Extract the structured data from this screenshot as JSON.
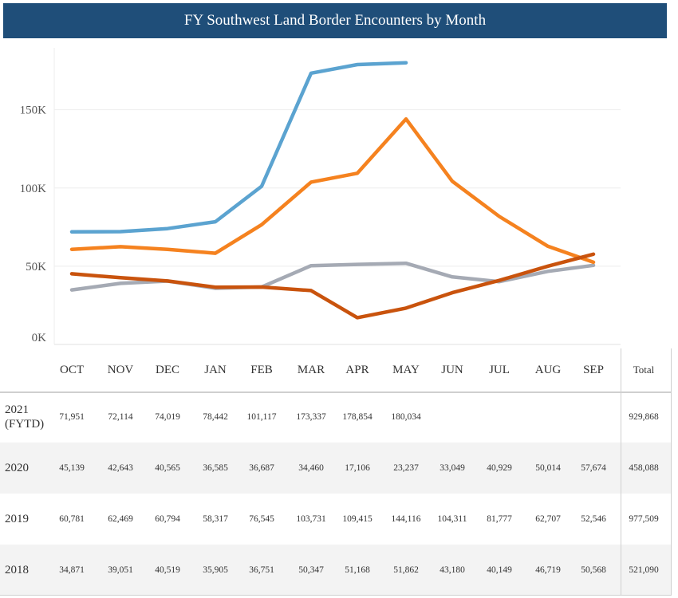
{
  "title": "FY Southwest Land Border Encounters by Month",
  "chart_data": {
    "type": "line",
    "title": "FY Southwest Land Border Encounters by Month",
    "categories": [
      "OCT",
      "NOV",
      "DEC",
      "JAN",
      "FEB",
      "MAR",
      "APR",
      "MAY",
      "JUN",
      "JUL",
      "AUG",
      "SEP"
    ],
    "y_ticks": [
      "0K",
      "50K",
      "100K",
      "150K"
    ],
    "ylim": [
      0,
      190000
    ],
    "grid": true,
    "total_label": "Total",
    "series": [
      {
        "name": "2021 (FYTD)",
        "color": "#5ba3d0",
        "values": [
          71951,
          72114,
          74019,
          78442,
          101117,
          173337,
          178854,
          180034,
          null,
          null,
          null,
          null
        ],
        "labels": [
          "71,951",
          "72,114",
          "74,019",
          "78,442",
          "101,117",
          "173,337",
          "178,854",
          "180,034",
          "",
          "",
          "",
          ""
        ],
        "total": "929,868"
      },
      {
        "name": "2020",
        "color": "#c9530d",
        "values": [
          45139,
          42643,
          40565,
          36585,
          36687,
          34460,
          17106,
          23237,
          33049,
          40929,
          50014,
          57674
        ],
        "labels": [
          "45,139",
          "42,643",
          "40,565",
          "36,585",
          "36,687",
          "34,460",
          "17,106",
          "23,237",
          "33,049",
          "40,929",
          "50,014",
          "57,674"
        ],
        "total": "458,088"
      },
      {
        "name": "2019",
        "color": "#f5821f",
        "values": [
          60781,
          62469,
          60794,
          58317,
          76545,
          103731,
          109415,
          144116,
          104311,
          81777,
          62707,
          52546
        ],
        "labels": [
          "60,781",
          "62,469",
          "60,794",
          "58,317",
          "76,545",
          "103,731",
          "109,415",
          "144,116",
          "104,311",
          "81,777",
          "62,707",
          "52,546"
        ],
        "total": "977,509"
      },
      {
        "name": "2018",
        "color": "#a5aab4",
        "values": [
          34871,
          39051,
          40519,
          35905,
          36751,
          50347,
          51168,
          51862,
          43180,
          40149,
          46719,
          50568
        ],
        "labels": [
          "34,871",
          "39,051",
          "40,519",
          "35,905",
          "36,751",
          "50,347",
          "51,168",
          "51,862",
          "43,180",
          "40,149",
          "46,719",
          "50,568"
        ],
        "total": "521,090"
      }
    ]
  }
}
